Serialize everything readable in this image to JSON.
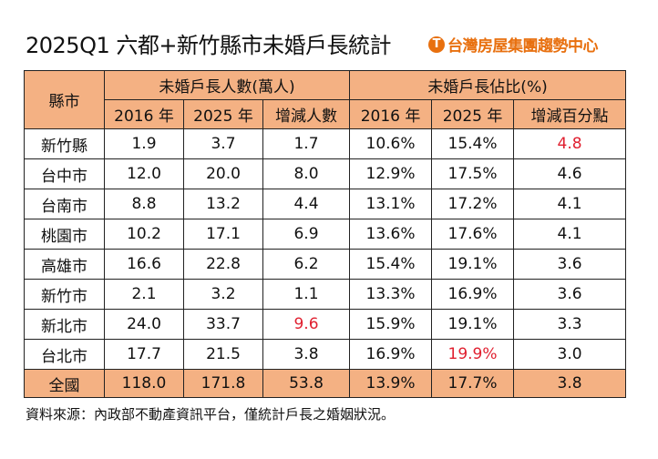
{
  "title": "2025Q1 六都+新竹縣市未婚戶長統計",
  "logo": {
    "text": "台灣房屋集團趨勢中心",
    "mark": "T",
    "color": "#e8700f"
  },
  "chart_data": {
    "type": "table",
    "header": {
      "region": "縣市",
      "group1": "未婚戶長人數(萬人)",
      "group2": "未婚戶長佔比(%)",
      "columns": [
        "2016 年",
        "2025 年",
        "增減人數",
        "2016 年",
        "2025 年",
        "增減百分點"
      ]
    },
    "rows": [
      {
        "region": "新竹縣",
        "values": [
          "1.9",
          "3.7",
          "1.7",
          "10.6%",
          "15.4%",
          "4.8"
        ],
        "highlight": [
          5
        ]
      },
      {
        "region": "台中市",
        "values": [
          "12.0",
          "20.0",
          "8.0",
          "12.9%",
          "17.5%",
          "4.6"
        ],
        "highlight": []
      },
      {
        "region": "台南市",
        "values": [
          "8.8",
          "13.2",
          "4.4",
          "13.1%",
          "17.2%",
          "4.1"
        ],
        "highlight": []
      },
      {
        "region": "桃園市",
        "values": [
          "10.2",
          "17.1",
          "6.9",
          "13.6%",
          "17.6%",
          "4.1"
        ],
        "highlight": []
      },
      {
        "region": "高雄市",
        "values": [
          "16.6",
          "22.8",
          "6.2",
          "15.4%",
          "19.1%",
          "3.6"
        ],
        "highlight": []
      },
      {
        "region": "新竹市",
        "values": [
          "2.1",
          "3.2",
          "1.1",
          "13.3%",
          "16.9%",
          "3.6"
        ],
        "highlight": []
      },
      {
        "region": "新北市",
        "values": [
          "24.0",
          "33.7",
          "9.6",
          "15.9%",
          "19.1%",
          "3.3"
        ],
        "highlight": [
          2
        ]
      },
      {
        "region": "台北市",
        "values": [
          "17.7",
          "21.5",
          "3.8",
          "16.9%",
          "19.9%",
          "3.0"
        ],
        "highlight": [
          4
        ]
      }
    ],
    "total": {
      "region": "全國",
      "values": [
        "118.0",
        "171.8",
        "53.8",
        "13.9%",
        "17.7%",
        "3.8"
      ]
    },
    "colors": {
      "header_fill": "#f4b183",
      "highlight_text": "#e02030"
    }
  },
  "footnote": "資料來源：內政部不動產資訊平台，僅統計戶長之婚姻狀況。"
}
